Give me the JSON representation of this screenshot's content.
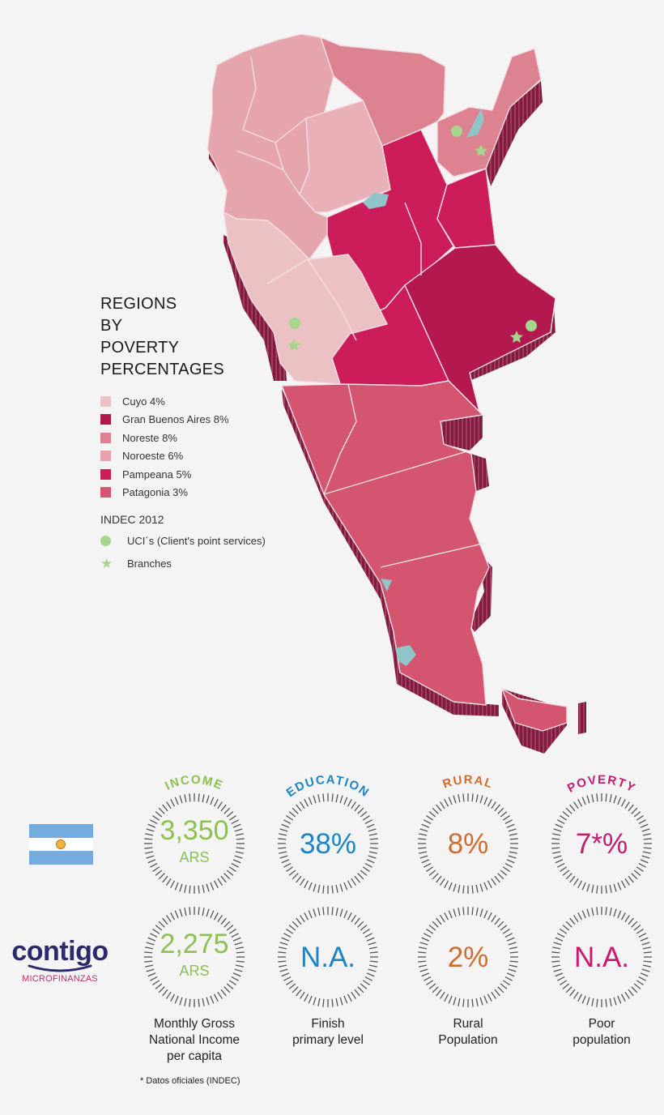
{
  "legend": {
    "title_lines": [
      "REGIONS",
      "BY",
      "POVERTY",
      "PERCENTAGES"
    ],
    "items": [
      {
        "label": "Cuyo 4%",
        "color": "#ecc1c3"
      },
      {
        "label": "Gran Buenos Aires 8%",
        "color": "#b3184f"
      },
      {
        "label": "Noreste 8%",
        "color": "#dd8290"
      },
      {
        "label": "Noroeste 6%",
        "color": "#e6a4ad"
      },
      {
        "label": "Pampeana 5%",
        "color": "#cc1d5a"
      },
      {
        "label": "Patagonia 3%",
        "color": "#d4556f"
      }
    ],
    "source": "INDEC 2012",
    "markers": [
      {
        "label": "UCI´s (Client's point services)",
        "icon": "dot-icon",
        "color": "#a5d68c"
      },
      {
        "label": "Branches",
        "icon": "star-icon",
        "color": "#a5d68c"
      }
    ]
  },
  "map": {
    "lake_color": "#8fc4c8",
    "side_color": "#8a2347"
  },
  "flag": {
    "label": "Argentina",
    "colors": [
      "#74acdf",
      "#ffffff",
      "#74acdf"
    ],
    "sun_color": "#f2b33d"
  },
  "brand": {
    "name": "contigo",
    "subtitle": "MICROFINANZAS",
    "name_color": "#2b2a6e",
    "sub_color": "#c2306f"
  },
  "metrics": [
    {
      "heading": "INCOME",
      "color": "#8cc152",
      "argentina_value": "3,350",
      "argentina_unit": "ARS",
      "contigo_value": "2,275",
      "contigo_unit": "ARS",
      "description": [
        "Monthly Gross",
        "National Income",
        "per capita"
      ]
    },
    {
      "heading": "EDUCATION",
      "color": "#1d84c6",
      "argentina_value": "38%",
      "argentina_unit": "",
      "contigo_value": "N.A.",
      "contigo_unit": "",
      "description": [
        "Finish",
        "primary level"
      ]
    },
    {
      "heading": "RURAL",
      "color": "#d36b2c",
      "argentina_value": "8%",
      "argentina_unit": "",
      "contigo_value": "2%",
      "contigo_unit": "",
      "description": [
        "Rural",
        "Population"
      ]
    },
    {
      "heading": "POVERTY",
      "color": "#c81b6f",
      "argentina_value": "7*%",
      "argentina_unit": "",
      "contigo_value": "N.A.",
      "contigo_unit": "",
      "description": [
        "Poor",
        "population"
      ]
    }
  ],
  "footnote": "* Datos oficiales (INDEC)"
}
